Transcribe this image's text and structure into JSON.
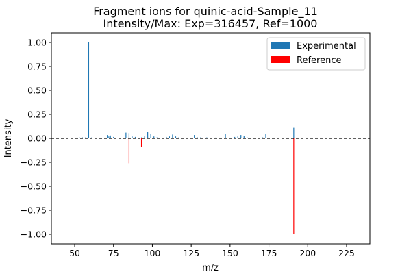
{
  "chart_data": {
    "type": "bar",
    "title": "Fragment ions for quinic-acid-Sample_11",
    "subtitle": "Intensity/Max: Exp=316457, Ref=1000",
    "xlabel": "m/z",
    "ylabel": "Intensity",
    "xlim": [
      35,
      240
    ],
    "ylim": [
      -1.1,
      1.1
    ],
    "xticks": [
      "50",
      "75",
      "100",
      "125",
      "150",
      "175",
      "200",
      "225"
    ],
    "yticks": [
      "1.00",
      "0.75",
      "0.50",
      "0.25",
      "0.00",
      "−0.25",
      "−0.50",
      "−0.75",
      "−1.00"
    ],
    "baseline": 0,
    "legend": {
      "position": "top-right"
    },
    "series": [
      {
        "name": "Experimental",
        "color": "#1f77b4",
        "x": [
          53,
          55,
          57,
          59,
          61,
          71,
          72,
          73,
          75,
          83,
          85,
          87,
          89,
          93,
          95,
          97,
          99,
          101,
          103,
          109,
          111,
          113,
          115,
          117,
          127,
          129,
          131,
          135,
          141,
          147,
          153,
          155,
          157,
          159,
          161,
          171,
          173,
          191
        ],
        "values": [
          0.01,
          0.01,
          0.01,
          1.0,
          0.01,
          0.035,
          0.02,
          0.03,
          0.015,
          0.06,
          0.055,
          0.02,
          0.015,
          0.01,
          0.02,
          0.065,
          0.045,
          0.02,
          0.01,
          0.015,
          0.02,
          0.04,
          0.02,
          0.01,
          0.035,
          0.01,
          0.01,
          0.01,
          0.01,
          0.045,
          0.015,
          0.02,
          0.035,
          0.025,
          0.01,
          0.01,
          0.045,
          0.11
        ]
      },
      {
        "name": "Reference",
        "color": "#ff0000",
        "x": [
          85,
          93,
          191
        ],
        "values": [
          -0.26,
          -0.09,
          -1.0
        ]
      }
    ]
  }
}
